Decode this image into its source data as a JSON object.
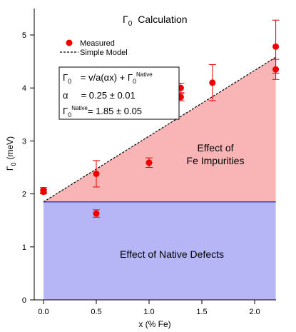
{
  "chart_data": {
    "type": "scatter",
    "title_main": "Γ",
    "title_sub": "0",
    "title_rest": "Calculation",
    "xlabel": "x (% Fe)",
    "ylabel_main": "Γ",
    "ylabel_sub": "0",
    "ylabel_rest": "(meV)",
    "xlim": [
      -0.05,
      2.25
    ],
    "ylim": [
      0,
      5.5
    ],
    "xticks": [
      0.0,
      0.5,
      1.0,
      1.5,
      2.0
    ],
    "xtick_labels": [
      "0.0",
      "0.5",
      "1.0",
      "1.5",
      "2.0"
    ],
    "yticks": [
      0,
      1,
      2,
      3,
      4,
      5
    ],
    "ytick_labels": [
      "0",
      "1",
      "2",
      "3",
      "4",
      "5"
    ],
    "grid": false,
    "legend": {
      "position": "top-left",
      "items": [
        {
          "label": "Measured",
          "marker": "circle"
        },
        {
          "label": "Simple Model",
          "marker": "dashed-line"
        }
      ]
    },
    "series": [
      {
        "name": "Measured",
        "color": "#ee0000",
        "points": [
          {
            "x": 0.0,
            "y": 2.07,
            "err": 0.05
          },
          {
            "x": 0.0,
            "y": 2.04,
            "err": 0.04
          },
          {
            "x": 0.5,
            "y": 2.38,
            "err": 0.25
          },
          {
            "x": 0.5,
            "y": 1.63,
            "err": 0.07
          },
          {
            "x": 1.0,
            "y": 2.59,
            "err": 0.09
          },
          {
            "x": 1.3,
            "y": 4.0,
            "err": 0.09
          },
          {
            "x": 1.3,
            "y": 3.83,
            "err": 0.07
          },
          {
            "x": 1.6,
            "y": 4.1,
            "err": 0.34
          },
          {
            "x": 2.2,
            "y": 4.78,
            "err": 0.5
          },
          {
            "x": 2.2,
            "y": 4.35,
            "err": 0.19
          }
        ]
      },
      {
        "name": "Simple Model",
        "color": "#000000",
        "line": [
          {
            "x": 0.0,
            "y": 1.85
          },
          {
            "x": 2.2,
            "y": 4.58
          }
        ]
      }
    ],
    "native_level": 1.85,
    "regions": {
      "fe": {
        "label_line1": "Effect of",
        "label_line2": "Fe Impurities",
        "color": "#f9b5b5"
      },
      "native": {
        "label": "Effect of Native Defects",
        "color": "#b6b6f7",
        "line_color": "#3a3ad6"
      }
    },
    "formula_box": {
      "row1_gamma": "Γ",
      "row1_sub": "0",
      "row1_mid": " = v/a(αx) + Γ",
      "row1_sub2": "0",
      "row1_sup": "Native",
      "row2": "α     = 0.25 ± 0.01",
      "row3_gamma": "Γ",
      "row3_sub": "0",
      "row3_sup": "Native",
      "row3_rest": "= 1.85 ± 0.05"
    }
  }
}
